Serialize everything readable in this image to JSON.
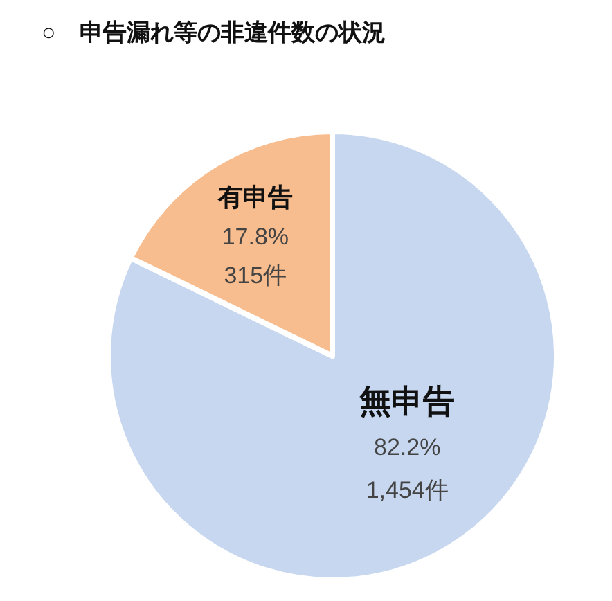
{
  "chart_data": {
    "type": "pie",
    "title": "○　申告漏れ等の非違件数の状況",
    "categories": [
      "無申告",
      "有申告"
    ],
    "values": [
      1454,
      315
    ],
    "colors": [
      "#c6d7ef",
      "#f8bd8e"
    ],
    "value_labels": [
      "82.2%\n1,454件",
      "17.8%\n315件"
    ]
  }
}
